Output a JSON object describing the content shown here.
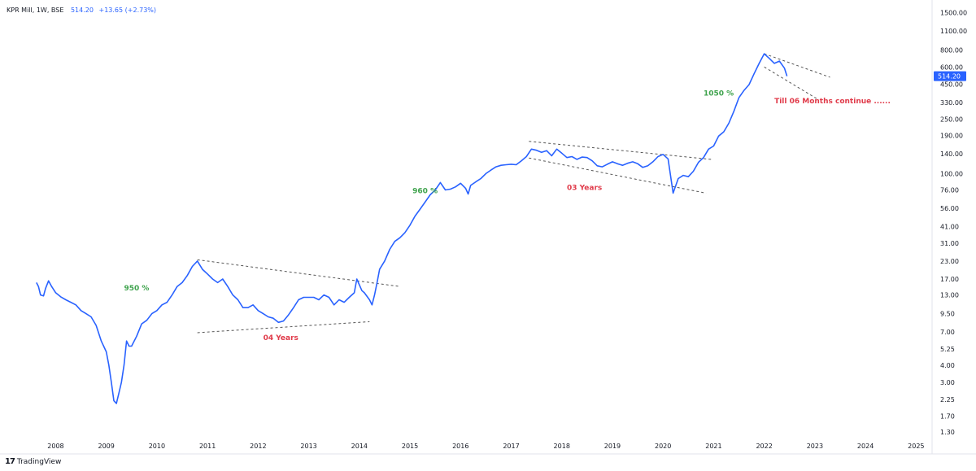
{
  "header": {
    "symbol_line": "KPR Mill, 1W, BSE",
    "last_value": "514.20",
    "change": "+13.65 (+2.73%)"
  },
  "branding": {
    "logo_text": "TradingView",
    "logo_mark": "17"
  },
  "colors": {
    "line": "#2962ff",
    "gain_annotation": "#3fa34d",
    "period_annotation": "#e03b4a",
    "price_tag_bg": "#2962ff",
    "axis_text": "#131722",
    "trendline": "#555555"
  },
  "chart_data": {
    "type": "line",
    "scale": "log",
    "series": [
      {
        "values": [
          [
            2007.62,
            16.0
          ],
          [
            2007.66,
            15.0
          ],
          [
            2007.7,
            13.0
          ],
          [
            2007.76,
            12.8
          ],
          [
            2007.8,
            14.5
          ],
          [
            2007.86,
            16.5
          ],
          [
            2007.92,
            15.0
          ],
          [
            2008.0,
            13.5
          ],
          [
            2008.1,
            12.6
          ],
          [
            2008.2,
            12.0
          ],
          [
            2008.3,
            11.5
          ],
          [
            2008.4,
            11.0
          ],
          [
            2008.5,
            10.0
          ],
          [
            2008.6,
            9.5
          ],
          [
            2008.7,
            9.0
          ],
          [
            2008.8,
            7.8
          ],
          [
            2008.9,
            6.0
          ],
          [
            2009.0,
            5.0
          ],
          [
            2009.05,
            4.0
          ],
          [
            2009.1,
            3.0
          ],
          [
            2009.15,
            2.2
          ],
          [
            2009.2,
            2.1
          ],
          [
            2009.25,
            2.5
          ],
          [
            2009.3,
            3.0
          ],
          [
            2009.35,
            4.0
          ],
          [
            2009.4,
            6.0
          ],
          [
            2009.45,
            5.5
          ],
          [
            2009.5,
            5.5
          ],
          [
            2009.6,
            6.5
          ],
          [
            2009.7,
            8.0
          ],
          [
            2009.8,
            8.5
          ],
          [
            2009.9,
            9.5
          ],
          [
            2010.0,
            10.0
          ],
          [
            2010.1,
            11.0
          ],
          [
            2010.2,
            11.5
          ],
          [
            2010.3,
            13.0
          ],
          [
            2010.4,
            15.0
          ],
          [
            2010.5,
            16.0
          ],
          [
            2010.6,
            18.0
          ],
          [
            2010.7,
            21.0
          ],
          [
            2010.8,
            23.0
          ],
          [
            2010.9,
            20.0
          ],
          [
            2011.0,
            18.5
          ],
          [
            2011.1,
            17.0
          ],
          [
            2011.2,
            16.0
          ],
          [
            2011.3,
            17.0
          ],
          [
            2011.4,
            15.0
          ],
          [
            2011.5,
            13.0
          ],
          [
            2011.6,
            12.0
          ],
          [
            2011.7,
            10.5
          ],
          [
            2011.8,
            10.5
          ],
          [
            2011.9,
            11.0
          ],
          [
            2012.0,
            10.0
          ],
          [
            2012.1,
            9.5
          ],
          [
            2012.2,
            9.0
          ],
          [
            2012.3,
            8.8
          ],
          [
            2012.4,
            8.2
          ],
          [
            2012.5,
            8.4
          ],
          [
            2012.6,
            9.3
          ],
          [
            2012.7,
            10.5
          ],
          [
            2012.8,
            12.0
          ],
          [
            2012.9,
            12.5
          ],
          [
            2013.0,
            12.5
          ],
          [
            2013.1,
            12.5
          ],
          [
            2013.2,
            12.0
          ],
          [
            2013.3,
            13.0
          ],
          [
            2013.4,
            12.5
          ],
          [
            2013.5,
            11.0
          ],
          [
            2013.6,
            12.0
          ],
          [
            2013.7,
            11.5
          ],
          [
            2013.8,
            12.5
          ],
          [
            2013.9,
            13.5
          ],
          [
            2013.95,
            17.0
          ],
          [
            2014.05,
            14.0
          ],
          [
            2014.1,
            13.5
          ],
          [
            2014.2,
            12.0
          ],
          [
            2014.25,
            11.0
          ],
          [
            2014.3,
            13.0
          ],
          [
            2014.35,
            16.0
          ],
          [
            2014.4,
            20.0
          ],
          [
            2014.5,
            23.0
          ],
          [
            2014.6,
            28.0
          ],
          [
            2014.7,
            32.0
          ],
          [
            2014.8,
            34.0
          ],
          [
            2014.9,
            37.0
          ],
          [
            2015.0,
            42.0
          ],
          [
            2015.1,
            49.0
          ],
          [
            2015.2,
            55.0
          ],
          [
            2015.3,
            62.0
          ],
          [
            2015.4,
            70.0
          ],
          [
            2015.5,
            76.0
          ],
          [
            2015.6,
            86.0
          ],
          [
            2015.7,
            76.0
          ],
          [
            2015.8,
            77.0
          ],
          [
            2015.9,
            80.0
          ],
          [
            2016.0,
            85.0
          ],
          [
            2016.1,
            78.0
          ],
          [
            2016.15,
            71.0
          ],
          [
            2016.2,
            82.0
          ],
          [
            2016.3,
            87.0
          ],
          [
            2016.4,
            92.0
          ],
          [
            2016.5,
            100.0
          ],
          [
            2016.6,
            106.0
          ],
          [
            2016.7,
            112.0
          ],
          [
            2016.8,
            115.0
          ],
          [
            2016.9,
            116.0
          ],
          [
            2017.0,
            117.0
          ],
          [
            2017.1,
            116.0
          ],
          [
            2017.2,
            124.0
          ],
          [
            2017.3,
            133.0
          ],
          [
            2017.4,
            151.0
          ],
          [
            2017.5,
            148.0
          ],
          [
            2017.6,
            143.0
          ],
          [
            2017.7,
            147.0
          ],
          [
            2017.8,
            135.0
          ],
          [
            2017.9,
            151.0
          ],
          [
            2018.0,
            141.0
          ],
          [
            2018.1,
            131.0
          ],
          [
            2018.2,
            133.0
          ],
          [
            2018.3,
            127.0
          ],
          [
            2018.4,
            132.0
          ],
          [
            2018.5,
            131.0
          ],
          [
            2018.6,
            124.0
          ],
          [
            2018.7,
            114.0
          ],
          [
            2018.8,
            112.0
          ],
          [
            2018.9,
            117.0
          ],
          [
            2019.0,
            122.0
          ],
          [
            2019.1,
            118.0
          ],
          [
            2019.2,
            115.0
          ],
          [
            2019.3,
            119.0
          ],
          [
            2019.4,
            122.0
          ],
          [
            2019.5,
            118.0
          ],
          [
            2019.6,
            111.0
          ],
          [
            2019.7,
            114.0
          ],
          [
            2019.8,
            122.0
          ],
          [
            2019.9,
            133.0
          ],
          [
            2020.0,
            138.0
          ],
          [
            2020.1,
            128.0
          ],
          [
            2020.2,
            72.0
          ],
          [
            2020.3,
            92.0
          ],
          [
            2020.4,
            97.0
          ],
          [
            2020.5,
            95.0
          ],
          [
            2020.6,
            104.0
          ],
          [
            2020.7,
            121.0
          ],
          [
            2020.8,
            131.0
          ],
          [
            2020.9,
            151.0
          ],
          [
            2021.0,
            159.0
          ],
          [
            2021.1,
            188.0
          ],
          [
            2021.2,
            202.0
          ],
          [
            2021.3,
            233.0
          ],
          [
            2021.4,
            285.0
          ],
          [
            2021.5,
            358.0
          ],
          [
            2021.6,
            405.0
          ],
          [
            2021.7,
            446.0
          ],
          [
            2021.8,
            536.0
          ],
          [
            2021.9,
            638.0
          ],
          [
            2022.0,
            749.0
          ],
          [
            2022.1,
            693.0
          ],
          [
            2022.2,
            638.0
          ],
          [
            2022.3,
            663.0
          ],
          [
            2022.4,
            588.0
          ],
          [
            2022.45,
            514.2
          ]
        ]
      }
    ],
    "x_axis": {
      "ticks": [
        "2008",
        "2009",
        "2010",
        "2011",
        "2012",
        "2013",
        "2014",
        "2015",
        "2016",
        "2017",
        "2018",
        "2019",
        "2020",
        "2021",
        "2022",
        "2023",
        "2024",
        "2025"
      ],
      "range": [
        2006.9,
        2025.3
      ]
    },
    "y_axis": {
      "ticks": [
        "1500.00",
        "1100.00",
        "800.00",
        "600.00",
        "450.00",
        "330.00",
        "250.00",
        "190.00",
        "140.00",
        "100.00",
        "76.00",
        "56.00",
        "41.00",
        "31.00",
        "23.00",
        "17.00",
        "13.00",
        "9.50",
        "7.00",
        "5.25",
        "4.00",
        "3.00",
        "2.25",
        "1.70",
        "1.30"
      ],
      "range": [
        1.15,
        1850
      ]
    },
    "last_price_label": "514.20",
    "annotations": [
      {
        "text": "950 %",
        "kind": "gain",
        "x": 2009.35,
        "y": 14.0
      },
      {
        "text": "04 Years",
        "kind": "period",
        "x": 2012.1,
        "y": 6.1
      },
      {
        "text": "960 %",
        "kind": "gain",
        "x": 2015.05,
        "y": 72.0
      },
      {
        "text": "03 Years",
        "kind": "period",
        "x": 2018.1,
        "y": 76.0
      },
      {
        "text": "1050 %",
        "kind": "gain",
        "x": 2020.8,
        "y": 372.0
      },
      {
        "text": "Till 06 Months continue ......",
        "kind": "period",
        "x": 2022.2,
        "y": 325.0
      }
    ],
    "trendlines": [
      [
        [
          2010.8,
          23.5
        ],
        [
          2014.8,
          15.0
        ]
      ],
      [
        [
          2010.8,
          6.9
        ],
        [
          2014.2,
          8.3
        ]
      ],
      [
        [
          2017.35,
          172.0
        ],
        [
          2020.95,
          127.0
        ]
      ],
      [
        [
          2017.35,
          130.0
        ],
        [
          2020.85,
          72.0
        ]
      ],
      [
        [
          2022.0,
          750.0
        ],
        [
          2023.3,
          505.0
        ]
      ],
      [
        [
          2022.0,
          600.0
        ],
        [
          2023.05,
          350.0
        ]
      ]
    ]
  }
}
